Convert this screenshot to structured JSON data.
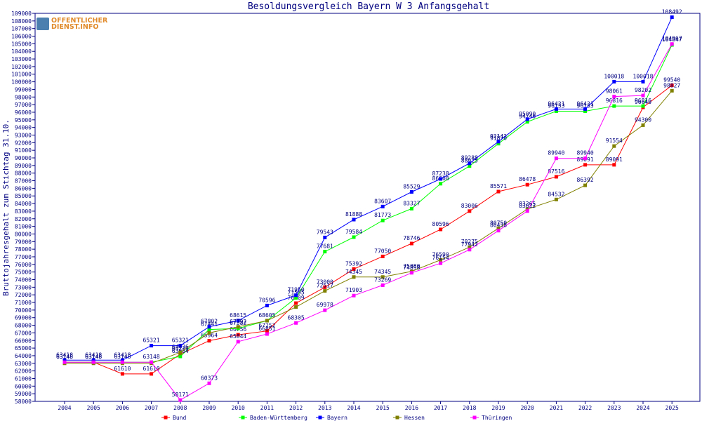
{
  "logo": {
    "line1": "OFFENTLICHER",
    "line2": "DIENST.INFO"
  },
  "chart_data": {
    "type": "line",
    "title": "Besoldungsvergleich Bayern W 3 Anfangsgehalt",
    "ylabel": "Bruttojahresgehalt zum Stichtag 31.10.",
    "xlabel": "",
    "categories": [
      "2004",
      "2005",
      "2006",
      "2007",
      "2008",
      "2009",
      "2010",
      "2011",
      "2012",
      "2013",
      "2014",
      "2015",
      "2016",
      "2017",
      "2018",
      "2019",
      "2020",
      "2021",
      "2022",
      "2023",
      "2024",
      "2025"
    ],
    "ylim": [
      58000,
      109000
    ],
    "ytick_step": 1000,
    "grid": false,
    "legend_position": "bottom",
    "series": [
      {
        "name": "Bund",
        "color": "#ff0000",
        "values": [
          63148,
          63148,
          61610,
          61610,
          64210,
          65964,
          66756,
          67252,
          70909,
          73000,
          75392,
          77050,
          78746,
          80596,
          83006,
          85571,
          86478,
          87516,
          89091,
          89091,
          96640,
          99540
        ],
        "labels": [
          "63148",
          "63148",
          "61610",
          "61610",
          "64210",
          "65964",
          "66756",
          "67252",
          "70909",
          "73000",
          "75392",
          "77050",
          "78746",
          "80596",
          "83006",
          "85571",
          "86478",
          "87516",
          "89091",
          "89091",
          "96640",
          "99540"
        ]
      },
      {
        "name": "Baden-Württemberg",
        "color": "#00ff00",
        "values": [
          63148,
          63148,
          63148,
          63148,
          63904,
          67441,
          67582,
          68605,
          71595,
          77681,
          79584,
          81773,
          83327,
          86608,
          88925,
          91870,
          94740,
          96133,
          96133,
          96816,
          96816,
          104847
        ],
        "labels": [
          "63148",
          "63148",
          "63148",
          "63148",
          "63904",
          "67441",
          "67582",
          "68605",
          "71595",
          "77681",
          "79584",
          "81773",
          "83327",
          "86608",
          "88925",
          "91870",
          "94740",
          "96133",
          "96133",
          "96816",
          "96816",
          "104847"
        ]
      },
      {
        "name": "Bayern",
        "color": "#0000ff",
        "values": [
          63418,
          63418,
          63418,
          65321,
          65321,
          67802,
          68615,
          70596,
          71950,
          79543,
          81888,
          83607,
          85529,
          87238,
          89288,
          92143,
          95090,
          96421,
          96421,
          100018,
          100018,
          108492
        ],
        "labels": [
          "63418",
          "63418",
          "63418",
          "65321",
          "65321",
          "67802",
          "68615",
          "70596",
          "71950",
          "79543",
          "81888",
          "83607",
          "85529",
          "87238",
          "89288",
          "92143",
          "95090",
          "96421",
          "96421",
          "100018",
          "100018",
          "108492"
        ]
      },
      {
        "name": "Hessen",
        "color": "#808000",
        "values": [
          63000,
          63000,
          63000,
          63000,
          64436,
          67000,
          67792,
          68605,
          70399,
          72517,
          74345,
          74345,
          75080,
          76590,
          78275,
          80750,
          83265,
          84532,
          86392,
          91554,
          94300,
          98827
        ],
        "labels": [
          "",
          "",
          "",
          "",
          "64436",
          "",
          "67792",
          "",
          "",
          "72517",
          "74345",
          "74345",
          "75080",
          "76590",
          "78275",
          "80750",
          "83265",
          "84532",
          "86392",
          "91554",
          "94300",
          "98827"
        ]
      },
      {
        "name": "Thüringen",
        "color": "#ff00ff",
        "values": [
          63148,
          63148,
          63148,
          63148,
          58171,
          60373,
          65844,
          66851,
          68305,
          69978,
          71903,
          73269,
          74898,
          76154,
          77942,
          80438,
          83012,
          89940,
          89940,
          98061,
          98202,
          104967
        ],
        "labels": [
          "",
          "",
          "",
          "",
          "58171",
          "60373",
          "65844",
          "66851",
          "68305",
          "69978",
          "71903",
          "73269",
          "74898",
          "76154",
          "77942",
          "80438",
          "83012",
          "89940",
          "89940",
          "98061",
          "98202",
          "104967"
        ]
      }
    ]
  }
}
